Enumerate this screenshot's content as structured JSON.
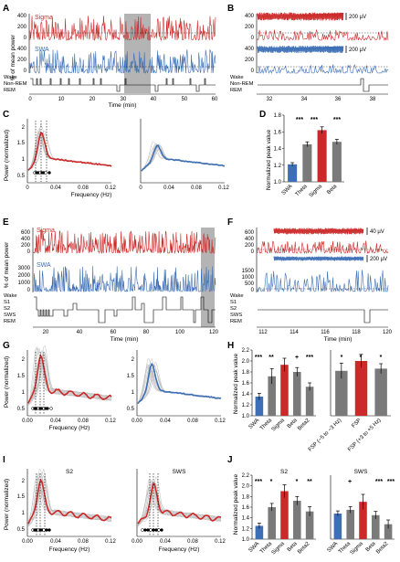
{
  "colors": {
    "red": "#cc2a2a",
    "blue": "#3d6fb6",
    "gray": "#7a7a7a",
    "darkgray": "#666666",
    "shade": "#b4b4b4",
    "lightline": "#bcbcbc"
  },
  "panels": {
    "A": {
      "label": "A",
      "ylabel": "% of mean power",
      "sigma": "Sigma",
      "swa": "SWA",
      "yticks_top": [
        "400",
        "200",
        "0"
      ],
      "yticks_bot": [
        "400",
        "200",
        "0"
      ],
      "stages": [
        "Wake",
        "Non-REM",
        "REM"
      ],
      "xticks": [
        "0",
        "10",
        "20",
        "30",
        "40",
        "50",
        "60"
      ],
      "xlabel": "Time (min)"
    },
    "B": {
      "label": "B",
      "scale1": "200 µV",
      "scale2": "200 µV",
      "yticks_top": [
        "400",
        "200",
        "0"
      ],
      "yticks_bot": [
        "400",
        "200",
        "0"
      ],
      "stages": [
        "Wake",
        "Non-REM",
        "REM"
      ],
      "xticks": [
        "32",
        "34",
        "36",
        "38"
      ]
    },
    "C": {
      "label": "C",
      "ylabel": "Power (normalized)",
      "yticks": [
        "2",
        "1.5",
        "1",
        "0.5"
      ],
      "xticks": [
        "0",
        "0.04",
        "0.08",
        "0.12"
      ],
      "xlabel": "Frequency (Hz)"
    },
    "D": {
      "label": "D",
      "ylabel": "Normalized peak value",
      "yticks": [
        "1.8",
        "1.6",
        "1.4",
        "1.2",
        "1.0"
      ],
      "bars": [
        "SWA",
        "Theta",
        "Sigma",
        "Beta"
      ],
      "stars": [
        "***",
        "***",
        "***"
      ]
    },
    "E": {
      "label": "E",
      "ylabel": "% of mean power",
      "sigma": "Sigma",
      "swa": "SWA",
      "yticks_top": [
        "600",
        "400",
        "200",
        "0"
      ],
      "yticks_bot": [
        "3000",
        "2000",
        "1000",
        "0"
      ],
      "stages": [
        "Wake",
        "S1",
        "S2",
        "SWS",
        "REM"
      ],
      "xticks": [
        "20",
        "40",
        "60",
        "80",
        "100",
        "120"
      ],
      "xlabel": "Time (min)"
    },
    "F": {
      "label": "F",
      "scale1": "40 µV",
      "scale2": "200 µV",
      "yticks_top": [
        "600",
        "400",
        "200",
        "0"
      ],
      "yticks_bot": [
        "1500",
        "1000",
        "500",
        "0"
      ],
      "stages": [
        "Wake",
        "S1",
        "S2",
        "SWS",
        "REM"
      ],
      "xticks": [
        "112",
        "114",
        "116",
        "118",
        "120"
      ],
      "xlabel": "Time (min)"
    },
    "G": {
      "label": "G",
      "ylabel": "Power (normalized)",
      "yticks_l": [
        "2",
        "1.5",
        "1",
        "0.5"
      ],
      "yticks_r": [
        "2",
        "1.5",
        "1",
        "0.5"
      ],
      "xticks": [
        "0.00",
        "0.04",
        "0.08",
        "0.12"
      ],
      "xlabel": "Frequency (Hz)"
    },
    "H": {
      "label": "H",
      "ylabel": "Normalized peak value",
      "yticks": [
        "2.2",
        "2.0",
        "1.8",
        "1.6",
        "1.4",
        "1.2",
        "1.0"
      ],
      "bars": [
        "SWA",
        "Theta",
        "Sigma",
        "Beta",
        "Beta2"
      ],
      "bars2": [
        "FSP (−5 to −3 Hz)",
        "FSP",
        "FSP (+3 to +5 Hz)"
      ],
      "stars": [
        "***",
        "**",
        "+",
        "***"
      ],
      "stars2": [
        "*",
        "*",
        "*"
      ]
    },
    "I": {
      "label": "I",
      "ylabel": "Power (normalized)",
      "sub1": "S2",
      "sub2": "SWS",
      "yticks": [
        "2",
        "1.5",
        "1",
        "0.5"
      ],
      "xticks": [
        "0.00",
        "0.04",
        "0.08",
        "0.12"
      ],
      "xlabel": "Frequency (Hz)"
    },
    "J": {
      "label": "J",
      "ylabel": "Normalized peak value",
      "sub1": "S2",
      "sub2": "SWS",
      "yticks": [
        "2.2",
        "2.0",
        "1.8",
        "1.6",
        "1.4",
        "1.2",
        "1.0"
      ],
      "bars": [
        "SWA",
        "Theta",
        "Sigma",
        "Beta",
        "Beta2"
      ],
      "stars": [
        "***",
        "*",
        "*",
        "**"
      ],
      "stars2": [
        "+",
        "***",
        "***"
      ]
    }
  },
  "chart_data": [
    {
      "panel": "D",
      "type": "bar",
      "categories": [
        "SWA",
        "Theta",
        "Sigma",
        "Beta"
      ],
      "values": [
        1.21,
        1.45,
        1.62,
        1.48
      ],
      "errors": [
        0.02,
        0.03,
        0.04,
        0.03
      ],
      "ylim": [
        1.0,
        1.8
      ],
      "ylabel": "Normalized peak value"
    },
    {
      "panel": "H-left",
      "type": "bar",
      "categories": [
        "SWA",
        "Theta",
        "Sigma",
        "Beta",
        "Beta2"
      ],
      "values": [
        1.35,
        1.72,
        1.93,
        1.8,
        1.53
      ],
      "errors": [
        0.06,
        0.14,
        0.12,
        0.08,
        0.07
      ],
      "ylim": [
        1.0,
        2.2
      ]
    },
    {
      "panel": "H-right",
      "type": "bar",
      "categories": [
        "FSP (−5 to −3 Hz)",
        "FSP",
        "FSP (+3 to +5 Hz)"
      ],
      "values": [
        1.82,
        2.0,
        1.86
      ],
      "errors": [
        0.14,
        0.12,
        0.09
      ],
      "ylim": [
        1.0,
        2.2
      ]
    },
    {
      "panel": "J-S2",
      "type": "bar",
      "categories": [
        "SWA",
        "Theta",
        "Sigma",
        "Beta",
        "Beta2"
      ],
      "values": [
        1.25,
        1.6,
        1.9,
        1.72,
        1.52
      ],
      "errors": [
        0.05,
        0.07,
        0.12,
        0.08,
        0.09
      ],
      "ylim": [
        1.0,
        2.2
      ]
    },
    {
      "panel": "J-SWS",
      "type": "bar",
      "categories": [
        "SWA",
        "Theta",
        "Sigma",
        "Beta",
        "Beta2"
      ],
      "values": [
        1.48,
        1.55,
        1.7,
        1.45,
        1.28
      ],
      "errors": [
        0.05,
        0.06,
        0.14,
        0.07,
        0.08
      ],
      "ylim": [
        1.0,
        2.2
      ]
    }
  ]
}
